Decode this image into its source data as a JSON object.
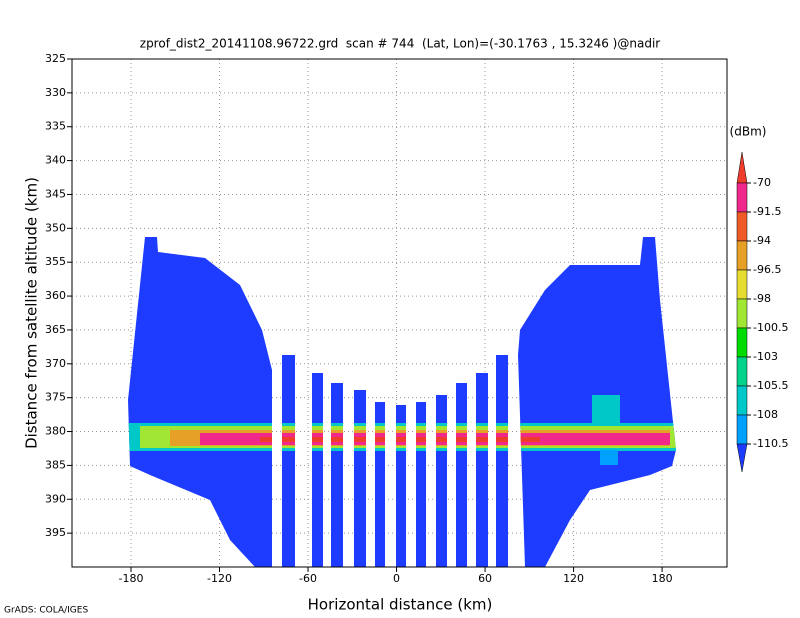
{
  "chart_data": {
    "type": "heatmap",
    "title": "zprof_dist2_20141108.96722.grd  scan # 744  (Lat, Lon)=(-30.1763 , 15.3246 )@nadir",
    "x_label": "Horizontal distance (km)",
    "y_label": "Distance from satellite altitude (km)",
    "footer": "GrADS: COLA/IGES",
    "xlim": [
      -220,
      224
    ],
    "xticks": [
      -180,
      -120,
      -60,
      0,
      60,
      120,
      180
    ],
    "ylim": [
      325,
      400
    ],
    "yticks": [
      325,
      330,
      335,
      340,
      345,
      350,
      355,
      360,
      365,
      370,
      375,
      380,
      385,
      390,
      395
    ],
    "y_inverted": true,
    "grid": true,
    "colorbar": {
      "unit": "(dBm)",
      "levels": [
        -70,
        -91.5,
        -94,
        -96.5,
        -98,
        -100.5,
        -103,
        -105.5,
        -108,
        -110.5
      ],
      "colors": [
        "#f03c2b",
        "#f0288c",
        "#f05a28",
        "#e6a028",
        "#e6dc32",
        "#a0e632",
        "#00dc00",
        "#00d28c",
        "#00c8c8",
        "#00a0ff",
        "#1e3cff"
      ]
    }
  }
}
